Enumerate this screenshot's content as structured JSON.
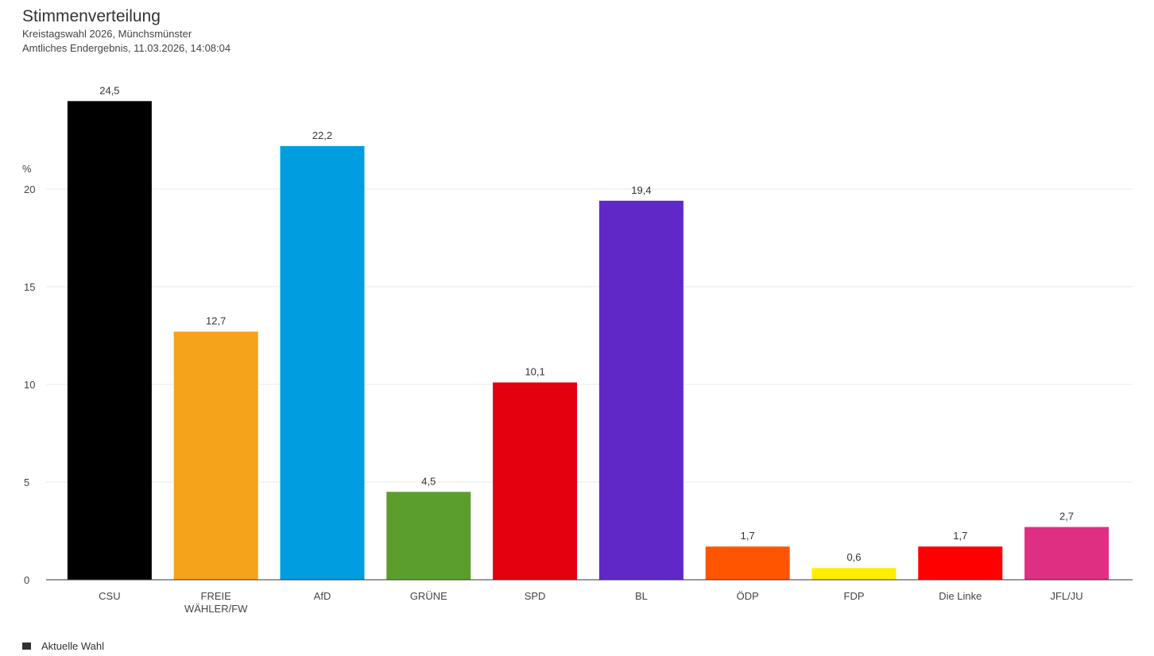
{
  "header": {
    "title": "Stimmenverteilung",
    "subtitle_1": "Kreistagswahl 2026, Münchsmünster",
    "subtitle_2": "Amtliches Endergebnis, 11.03.2026, 14:08:04"
  },
  "legend": {
    "label": "Aktuelle Wahl",
    "color": "#333333"
  },
  "chart_data": {
    "type": "bar",
    "title": "Stimmenverteilung",
    "ylabel": "%",
    "xlabel": "",
    "ylim": [
      0,
      25
    ],
    "yticks": [
      0,
      5,
      10,
      15,
      20
    ],
    "grid": true,
    "legend_position": "bottom-left",
    "categories": [
      [
        "CSU"
      ],
      [
        "FREIE",
        "WÄHLER/FW"
      ],
      [
        "AfD"
      ],
      [
        "GRÜNE"
      ],
      [
        "SPD"
      ],
      [
        "BL"
      ],
      [
        "ÖDP"
      ],
      [
        "FDP"
      ],
      [
        "Die Linke"
      ],
      [
        "JFL/JU"
      ]
    ],
    "series": [
      {
        "name": "Aktuelle Wahl",
        "values": [
          24.5,
          12.7,
          22.2,
          4.5,
          10.1,
          19.4,
          1.7,
          0.6,
          1.7,
          2.7
        ],
        "labels": [
          "24,5",
          "12,7",
          "22,2",
          "4,5",
          "10,1",
          "19,4",
          "1,7",
          "0,6",
          "1,7",
          "2,7"
        ],
        "colors": [
          "#000000",
          "#f5a31a",
          "#009ee0",
          "#5c9e2e",
          "#e3000f",
          "#6128c8",
          "#ff5500",
          "#ffed00",
          "#ff0000",
          "#de2f82"
        ]
      }
    ]
  }
}
